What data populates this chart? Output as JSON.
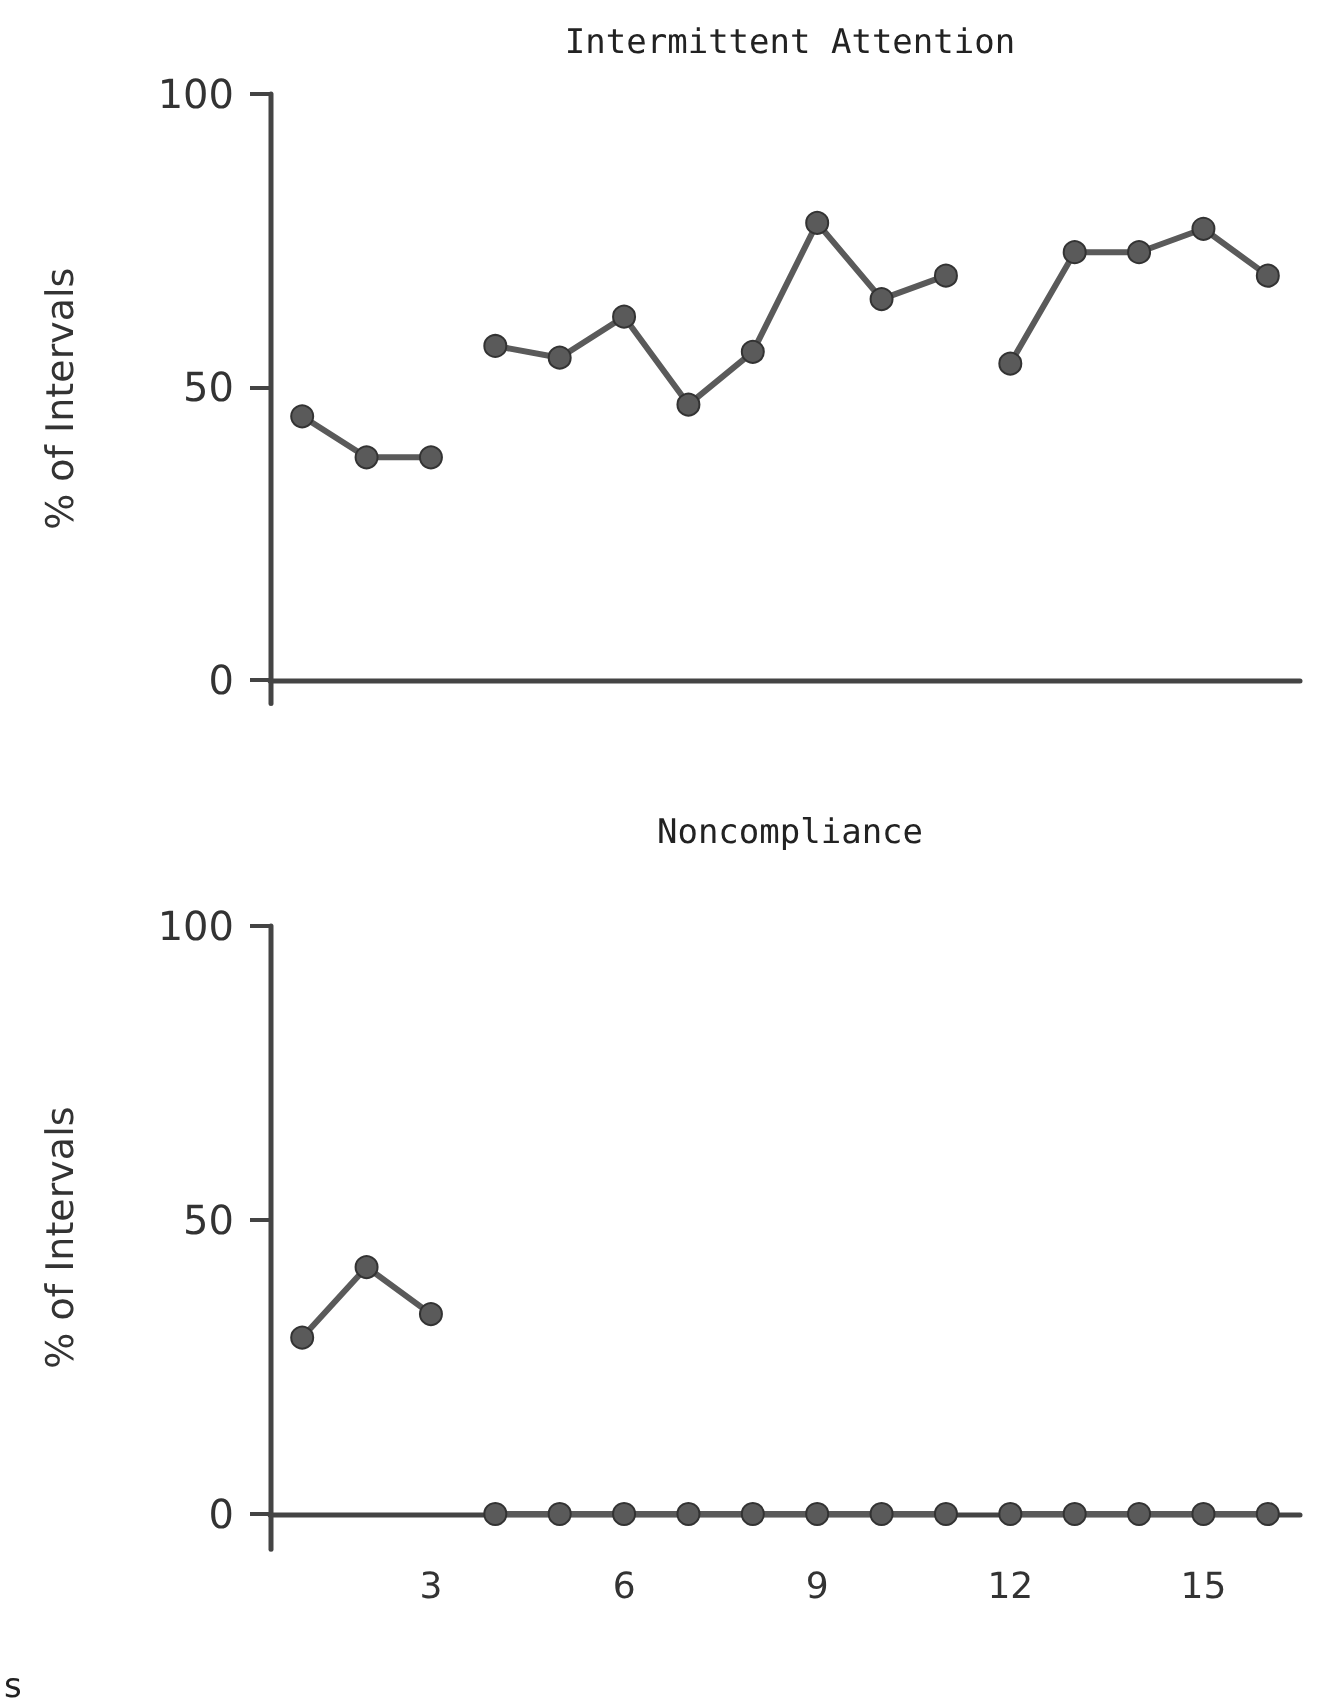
{
  "chart_data": [
    {
      "type": "line",
      "title": "Intermittent Attention",
      "ylabel": "% of Intervals",
      "categories": [
        null,
        null,
        null,
        null,
        null,
        null,
        null,
        null,
        null,
        null,
        null,
        null,
        null,
        null,
        null,
        null
      ],
      "ylim": [
        -4,
        100
      ],
      "yticks": [
        0,
        50,
        100
      ],
      "tick_labels": "y",
      "marker": "circle",
      "line_style": "solid",
      "series": [
        {
          "color": "#5a5a5a",
          "values": [
            45,
            38,
            38,
            null,
            null,
            null,
            null,
            null,
            null,
            null,
            null,
            null,
            null,
            null,
            null,
            null
          ]
        },
        {
          "color": "#5a5a5a",
          "values": [
            null,
            null,
            null,
            57,
            55,
            62,
            47,
            56,
            78,
            65,
            69,
            null,
            null,
            null,
            null,
            null
          ]
        },
        {
          "color": "#5a5a5a",
          "values": [
            null,
            null,
            null,
            null,
            null,
            null,
            null,
            null,
            null,
            null,
            null,
            54,
            73,
            73,
            77,
            69
          ]
        }
      ]
    },
    {
      "type": "line",
      "title": "Noncompliance",
      "ylabel": "% of Intervals",
      "categories": [
        null,
        null,
        "3",
        null,
        null,
        "6",
        null,
        null,
        "9",
        null,
        null,
        "12",
        null,
        null,
        "15",
        null
      ],
      "ylim": [
        -6,
        100
      ],
      "yticks": [
        0,
        50,
        100
      ],
      "marker": "circle",
      "line_style": "solid",
      "annotations": [
        "s"
      ],
      "series": [
        {
          "color": "#5a5a5a",
          "values": [
            30,
            42,
            34,
            null,
            null,
            null,
            null,
            null,
            null,
            null,
            null,
            null,
            null,
            null,
            null,
            null
          ]
        },
        {
          "color": "#5a5a5a",
          "values": [
            null,
            null,
            null,
            0,
            0,
            0,
            0,
            0,
            0,
            0,
            0,
            null,
            null,
            null,
            null,
            null
          ]
        },
        {
          "color": "#5a5a5a",
          "values": [
            null,
            null,
            null,
            null,
            null,
            null,
            null,
            null,
            null,
            null,
            null,
            0,
            0,
            0,
            0,
            0
          ]
        }
      ]
    }
  ]
}
